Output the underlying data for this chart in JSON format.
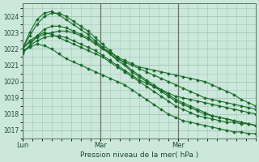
{
  "bg_color": "#cce8dc",
  "grid_color": "#aaccbc",
  "line_color": "#1a6b2a",
  "marker_color": "#1a6b2a",
  "vline_color": "#667766",
  "xlabel": "Pression niveau de la mer( hPa )",
  "ylim": [
    1016.5,
    1024.8
  ],
  "yticks": [
    1017,
    1018,
    1019,
    1020,
    1021,
    1022,
    1023,
    1024
  ],
  "xlim": [
    0,
    48
  ],
  "xtick_positions": [
    0,
    16,
    32
  ],
  "xtick_labels": [
    "Lun",
    "Mar",
    "Mer"
  ],
  "vlines": [
    0,
    16,
    32
  ],
  "series": [
    [
      1021.8,
      1022.1,
      1022.3,
      1022.2,
      1022.0,
      1021.7,
      1021.4,
      1021.2,
      1021.0,
      1020.8,
      1020.6,
      1020.4,
      1020.2,
      1020.0,
      1019.8,
      1019.5,
      1019.2,
      1018.9,
      1018.6,
      1018.3,
      1018.0,
      1017.8,
      1017.6,
      1017.5,
      1017.4,
      1017.3,
      1017.2,
      1017.1,
      1017.0,
      1016.9,
      1016.9,
      1016.8,
      1016.8
    ],
    [
      1022.0,
      1022.5,
      1022.8,
      1023.0,
      1022.9,
      1022.7,
      1022.5,
      1022.3,
      1022.1,
      1021.9,
      1021.7,
      1021.5,
      1021.2,
      1020.9,
      1020.6,
      1020.3,
      1020.0,
      1019.7,
      1019.4,
      1019.1,
      1018.8,
      1018.5,
      1018.3,
      1018.1,
      1017.9,
      1017.8,
      1017.7,
      1017.6,
      1017.5,
      1017.5,
      1017.4,
      1017.4,
      1017.3
    ],
    [
      1022.0,
      1022.8,
      1023.5,
      1024.0,
      1024.2,
      1024.2,
      1024.0,
      1023.7,
      1023.4,
      1023.1,
      1022.7,
      1022.3,
      1021.9,
      1021.5,
      1021.1,
      1020.7,
      1020.4,
      1020.1,
      1019.8,
      1019.5,
      1019.2,
      1018.9,
      1018.7,
      1018.5,
      1018.3,
      1018.1,
      1017.9,
      1017.8,
      1017.7,
      1017.6,
      1017.5,
      1017.4,
      1017.3
    ],
    [
      1022.0,
      1023.0,
      1023.8,
      1024.2,
      1024.3,
      1024.1,
      1023.8,
      1023.5,
      1023.2,
      1022.9,
      1022.5,
      1022.1,
      1021.7,
      1021.3,
      1021.0,
      1020.6,
      1020.3,
      1020.0,
      1019.7,
      1019.4,
      1019.1,
      1018.8,
      1018.6,
      1018.4,
      1018.2,
      1018.0,
      1017.9,
      1017.8,
      1017.7,
      1017.6,
      1017.5,
      1017.4,
      1017.3
    ],
    [
      1021.8,
      1022.2,
      1022.5,
      1022.7,
      1022.8,
      1022.8,
      1022.7,
      1022.5,
      1022.3,
      1022.1,
      1021.9,
      1021.6,
      1021.3,
      1021.0,
      1020.7,
      1020.4,
      1020.1,
      1019.9,
      1019.7,
      1019.5,
      1019.3,
      1019.1,
      1019.0,
      1018.9,
      1018.8,
      1018.7,
      1018.6,
      1018.5,
      1018.4,
      1018.3,
      1018.2,
      1018.1,
      1018.0
    ],
    [
      1022.0,
      1022.4,
      1022.7,
      1022.9,
      1023.0,
      1023.1,
      1023.1,
      1023.0,
      1022.8,
      1022.6,
      1022.3,
      1022.0,
      1021.7,
      1021.4,
      1021.2,
      1021.0,
      1020.8,
      1020.6,
      1020.4,
      1020.2,
      1020.0,
      1019.8,
      1019.6,
      1019.4,
      1019.2,
      1019.0,
      1018.9,
      1018.8,
      1018.7,
      1018.6,
      1018.5,
      1018.4,
      1018.3
    ],
    [
      1021.7,
      1022.2,
      1022.8,
      1023.2,
      1023.4,
      1023.4,
      1023.3,
      1023.1,
      1022.9,
      1022.7,
      1022.4,
      1022.1,
      1021.8,
      1021.5,
      1021.3,
      1021.1,
      1020.9,
      1020.8,
      1020.7,
      1020.6,
      1020.5,
      1020.4,
      1020.3,
      1020.2,
      1020.1,
      1020.0,
      1019.8,
      1019.6,
      1019.4,
      1019.2,
      1018.9,
      1018.7,
      1018.5
    ]
  ]
}
